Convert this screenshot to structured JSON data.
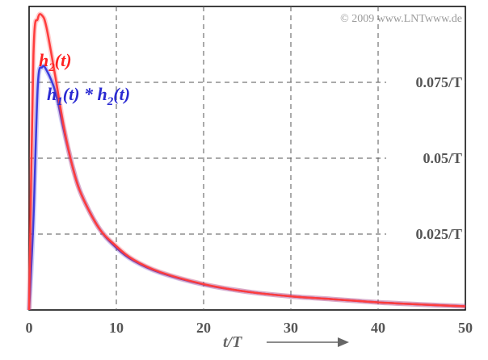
{
  "copyright": "© 2009 www.LNTwww.de",
  "chart_data": {
    "type": "line",
    "xlabel": "t/T",
    "xlim": [
      0,
      50
    ],
    "ylim": [
      0,
      0.1
    ],
    "x_ticks": [
      0,
      10,
      20,
      30,
      40,
      50
    ],
    "x_tick_labels": [
      "0",
      "10",
      "20",
      "30",
      "40",
      "50"
    ],
    "y_level_labels": [
      {
        "value": 0.075,
        "label": "0.075/T"
      },
      {
        "value": 0.05,
        "label": "0.05/T"
      },
      {
        "value": 0.025,
        "label": "0.025/T"
      }
    ],
    "grid": true,
    "series": [
      {
        "name": "h2(t)",
        "color": "#ff3c3c",
        "x": [
          0,
          0.5,
          1,
          1.5,
          2,
          3,
          4,
          5,
          6,
          8,
          10,
          12,
          15,
          20,
          25,
          30,
          35,
          40,
          45,
          50
        ],
        "values": [
          0,
          0.084,
          0.096,
          0.097,
          0.093,
          0.077,
          0.06,
          0.047,
          0.038,
          0.027,
          0.021,
          0.0165,
          0.0125,
          0.0085,
          0.006,
          0.0045,
          0.0035,
          0.0025,
          0.0018,
          0.0012
        ]
      },
      {
        "name": "h1(t) * h2(t)",
        "color": "#3c3cdc",
        "x": [
          0,
          0.5,
          1,
          1.5,
          2,
          3,
          4,
          5,
          6,
          8,
          10,
          12,
          15,
          20,
          25,
          30,
          35,
          40,
          45,
          50
        ],
        "values": [
          0,
          0.03,
          0.074,
          0.08,
          0.079,
          0.072,
          0.059,
          0.047,
          0.038,
          0.027,
          0.0205,
          0.0162,
          0.0123,
          0.0084,
          0.006,
          0.0045,
          0.0035,
          0.0025,
          0.0018,
          0.0012
        ]
      }
    ]
  },
  "legend": {
    "h2": {
      "base": "h",
      "sub": "2",
      "arg": "(t)"
    },
    "conv": {
      "base1": "h",
      "sub1": "1",
      "mid": "(t) * ",
      "base2": "h",
      "sub2": "2",
      "arg": "(t)"
    }
  }
}
